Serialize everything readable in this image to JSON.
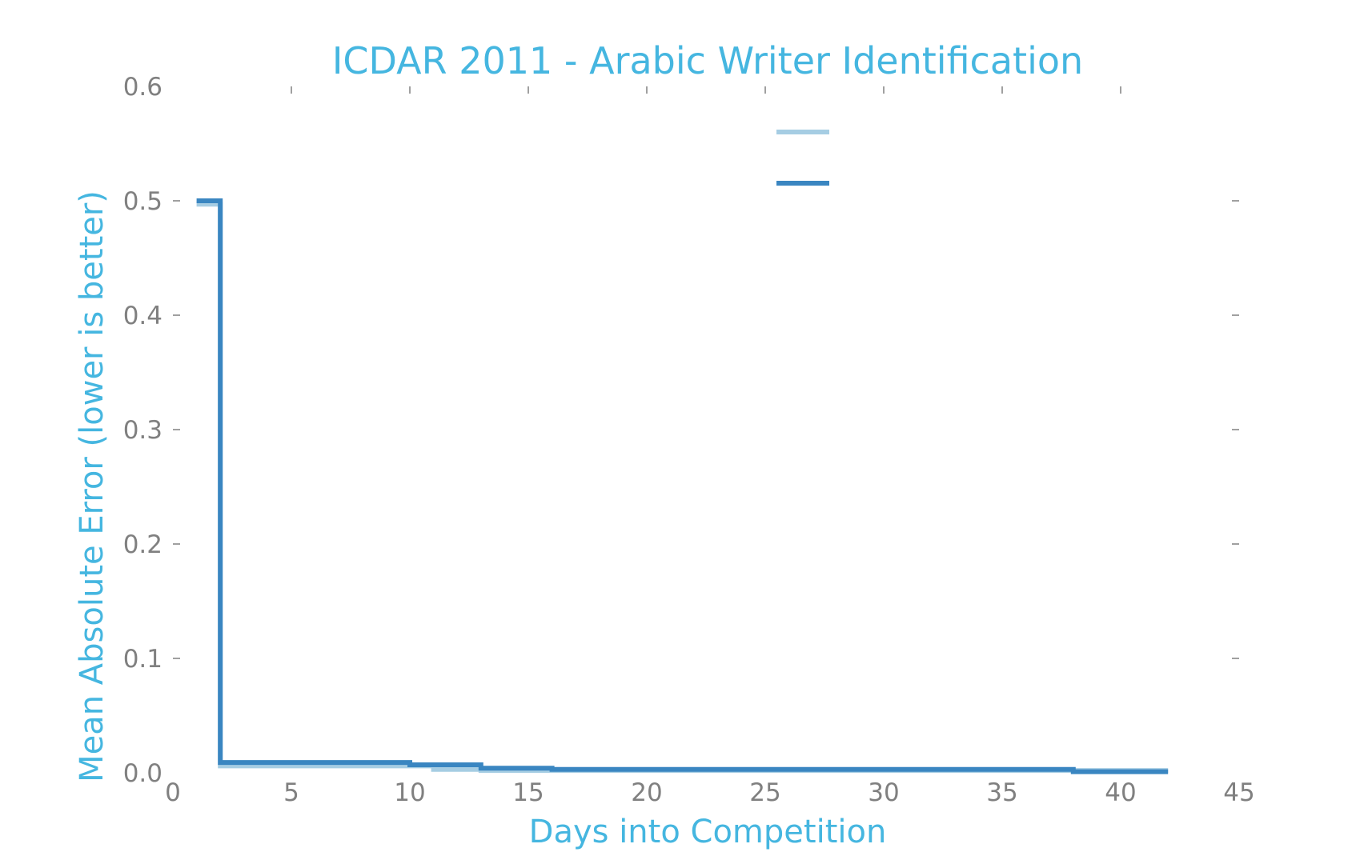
{
  "chart_data": {
    "type": "line",
    "title": "ICDAR 2011 - Arabic Writer Identification",
    "xlabel": "Days into Competition",
    "ylabel": "Mean Absolute Error (lower is better)",
    "xlim": [
      0,
      45
    ],
    "ylim": [
      0.0,
      0.6
    ],
    "xticks": [
      0,
      5,
      10,
      15,
      20,
      25,
      30,
      35,
      40,
      45
    ],
    "yticks": [
      0.0,
      0.1,
      0.2,
      0.3,
      0.4,
      0.5,
      0.6
    ],
    "xtick_labels": [
      "0",
      "5",
      "10",
      "15",
      "20",
      "25",
      "30",
      "35",
      "40",
      "45"
    ],
    "ytick_labels": [
      "0.0",
      "0.1",
      "0.2",
      "0.3",
      "0.4",
      "0.5",
      "0.6"
    ],
    "grid": false,
    "legend": "top-center",
    "series": [
      {
        "color": "#a6cde3",
        "step": "post",
        "x": [
          1,
          2,
          2,
          11,
          11,
          13,
          13,
          42
        ],
        "y": [
          0.497,
          0.497,
          0.006,
          0.006,
          0.003,
          0.003,
          0.002,
          0.002
        ]
      },
      {
        "color": "#3a86c1",
        "step": "post",
        "x": [
          1,
          2,
          2,
          10,
          10,
          13,
          13,
          16,
          16,
          38,
          38,
          42
        ],
        "y": [
          0.5,
          0.5,
          0.009,
          0.009,
          0.007,
          0.007,
          0.004,
          0.004,
          0.003,
          0.003,
          0.001,
          0.001
        ]
      }
    ]
  }
}
